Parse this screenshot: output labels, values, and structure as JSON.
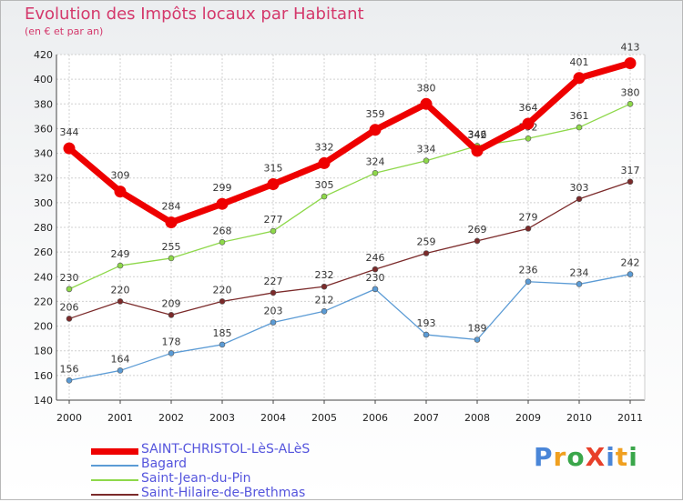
{
  "title": "Evolution des Impôts locaux par Habitant",
  "subtitle": "(en € et par an)",
  "logo": "ProXiti",
  "colors": {
    "title": "#d4386b",
    "legend_text": "#5555dd"
  },
  "chart_data": {
    "type": "line",
    "x": [
      2000,
      2001,
      2002,
      2003,
      2004,
      2005,
      2006,
      2007,
      2008,
      2009,
      2010,
      2011
    ],
    "ylim": [
      140,
      420
    ],
    "yticks": [
      140,
      160,
      180,
      200,
      220,
      240,
      260,
      280,
      300,
      320,
      340,
      360,
      380,
      400,
      420
    ],
    "grid": true,
    "legend_position": "bottom-left",
    "series": [
      {
        "name": "SAINT-CHRISTOL-LèS-ALèS",
        "color": "#ee0000",
        "width": 7,
        "values": [
          344,
          309,
          284,
          299,
          315,
          332,
          359,
          380,
          342,
          364,
          401,
          413
        ]
      },
      {
        "name": "Bagard",
        "color": "#5b9bd5",
        "width": 1.3,
        "values": [
          156,
          164,
          178,
          185,
          203,
          212,
          230,
          193,
          189,
          236,
          234,
          242
        ]
      },
      {
        "name": "Saint-Jean-du-Pin",
        "color": "#8ed84a",
        "width": 1.3,
        "values": [
          230,
          249,
          255,
          268,
          277,
          305,
          324,
          334,
          346,
          352,
          361,
          380
        ]
      },
      {
        "name": "Saint-Hilaire-de-Brethmas",
        "color": "#7b2a2a",
        "width": 1.3,
        "values": [
          206,
          220,
          209,
          220,
          227,
          232,
          246,
          259,
          269,
          279,
          303,
          317
        ]
      }
    ]
  }
}
